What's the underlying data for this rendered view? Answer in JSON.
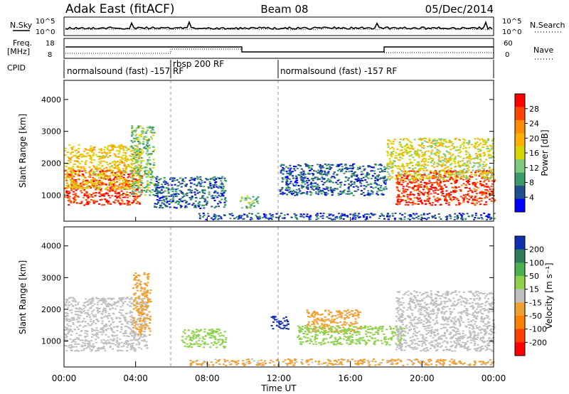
{
  "header": {
    "station": "Adak East (fitACF)",
    "beam": "Beam 08",
    "date": "05/Dec/2014"
  },
  "noise_panel": {
    "left_label": "N.Sky",
    "right_label": "N.Search",
    "left_ticks": [
      "10^5",
      "10^0"
    ],
    "right_ticks": [
      "10^5",
      "10^0"
    ]
  },
  "freq_panel": {
    "left_label_line1": "Freq.",
    "left_label_line2": "[MHz]",
    "right_label": "Nave",
    "left_ticks": [
      "18",
      "8"
    ],
    "right_ticks": [
      "60",
      "0"
    ]
  },
  "cpid_panel": {
    "label": "CPID",
    "segments": [
      "normalsound (fast) -157 RF",
      "rbsp 200 RF",
      "normalsound (fast) -157 RF"
    ]
  },
  "x_axis": {
    "tick_labels": [
      "00:00",
      "04:00",
      "08:00",
      "12:00",
      "16:00",
      "20:00",
      "00:00"
    ],
    "title": "Time UT"
  },
  "power_colorbar": {
    "title": "Power [dB]",
    "ticks": [
      "28",
      "24",
      "20",
      "16",
      "12",
      "8",
      "4"
    ],
    "colors": [
      "#ff0000",
      "#ff4500",
      "#ff8c00",
      "#ffb000",
      "#d6d600",
      "#7fc97f",
      "#3a9a6a",
      "#20508c",
      "#0000ff"
    ]
  },
  "velocity_colorbar": {
    "title": "Velocity [m s⁻¹]",
    "ticks": [
      "200",
      "100",
      "50",
      "15",
      "-15",
      "-50",
      "-100",
      "-200"
    ],
    "colors": [
      "#1030b0",
      "#2e7d5a",
      "#4caf50",
      "#8fd14f",
      "#c0c0c0",
      "#f0a030",
      "#ff8000",
      "#ff4000",
      "#ff0000"
    ]
  },
  "chart_data": [
    {
      "type": "heatmap",
      "title": "Power",
      "ylabel": "Slant Range [km]",
      "xlabel": "Time UT",
      "x_range_hours": [
        0,
        24
      ],
      "ylim": [
        180,
        4600
      ],
      "ytick_labels": [
        "1000",
        "2000",
        "3000",
        "4000"
      ],
      "xtick_labels": [
        "00:00",
        "04:00",
        "08:00",
        "12:00",
        "16:00",
        "20:00",
        "00:00"
      ],
      "colorbar": {
        "label": "Power [dB]",
        "ticks": [
          4,
          8,
          12,
          16,
          20,
          24,
          28
        ]
      },
      "regions": [
        {
          "t": [
            0,
            4.3
          ],
          "r": [
            700,
            1800
          ],
          "value": 28
        },
        {
          "t": [
            0,
            4.3
          ],
          "r": [
            1200,
            2600
          ],
          "value": 18
        },
        {
          "t": [
            3.7,
            5.0
          ],
          "r": [
            1000,
            3200
          ],
          "value": 12
        },
        {
          "t": [
            5.0,
            9.0
          ],
          "r": [
            600,
            1600
          ],
          "value": 6
        },
        {
          "t": [
            9.8,
            10.8
          ],
          "r": [
            600,
            1000
          ],
          "value": 12
        },
        {
          "t": [
            12.0,
            18.0
          ],
          "r": [
            1000,
            2000
          ],
          "value": 6
        },
        {
          "t": [
            7.5,
            24
          ],
          "r": [
            250,
            450
          ],
          "value": 5
        },
        {
          "t": [
            18.5,
            24
          ],
          "r": [
            700,
            1800
          ],
          "value": 28
        },
        {
          "t": [
            18.0,
            24
          ],
          "r": [
            1500,
            2800
          ],
          "value": 16
        }
      ]
    },
    {
      "type": "heatmap",
      "title": "Velocity",
      "ylabel": "Slant Range [km]",
      "xlabel": "Time UT",
      "x_range_hours": [
        0,
        24
      ],
      "ylim": [
        180,
        4600
      ],
      "ytick_labels": [
        "1000",
        "2000",
        "3000",
        "4000"
      ],
      "xtick_labels": [
        "00:00",
        "04:00",
        "08:00",
        "12:00",
        "16:00",
        "20:00",
        "00:00"
      ],
      "colorbar": {
        "label": "Velocity [m s⁻¹]",
        "ticks": [
          200,
          100,
          50,
          15,
          -15,
          -50,
          -100,
          -200
        ]
      },
      "regions": [
        {
          "t": [
            0,
            4.6
          ],
          "r": [
            700,
            2400
          ],
          "value": 0
        },
        {
          "t": [
            3.8,
            4.8
          ],
          "r": [
            1200,
            3200
          ],
          "value": -40
        },
        {
          "t": [
            6.5,
            9.0
          ],
          "r": [
            800,
            1400
          ],
          "value": 40
        },
        {
          "t": [
            11.5,
            12.5
          ],
          "r": [
            1400,
            1800
          ],
          "value": 200
        },
        {
          "t": [
            13.5,
            16.5
          ],
          "r": [
            1300,
            2000
          ],
          "value": -60
        },
        {
          "t": [
            13.0,
            19.0
          ],
          "r": [
            900,
            1500
          ],
          "value": 40
        },
        {
          "t": [
            18.5,
            24
          ],
          "r": [
            700,
            2600
          ],
          "value": 0
        },
        {
          "t": [
            7.0,
            24
          ],
          "r": [
            250,
            450
          ],
          "value": -30
        }
      ]
    }
  ]
}
